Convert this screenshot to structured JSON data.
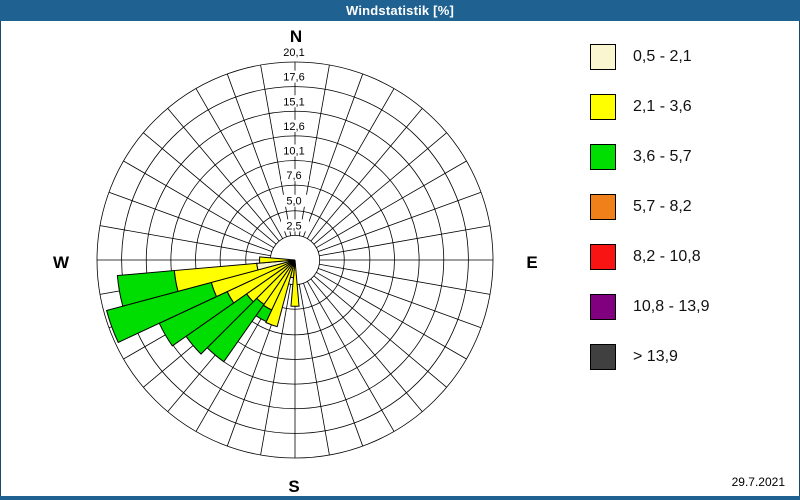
{
  "window": {
    "title": "Windstatistik [%]",
    "date": "29.7.2021"
  },
  "colors": {
    "titlebar": "#1f6191",
    "background": "#ffffff",
    "grid": "#000000",
    "classes": [
      "#faf7d0",
      "#ffff00",
      "#00dd00",
      "#f08019",
      "#f91414",
      "#800080",
      "#404040"
    ]
  },
  "legend": {
    "items": [
      {
        "label": "0,5 - 2,1",
        "color": "#faf7d0"
      },
      {
        "label": "2,1 - 3,6",
        "color": "#ffff00"
      },
      {
        "label": "3,6 - 5,7",
        "color": "#00dd00"
      },
      {
        "label": "5,7 - 8,2",
        "color": "#f08019"
      },
      {
        "label": "8,2 - 10,8",
        "color": "#f91414"
      },
      {
        "label": "10,8 - 13,9",
        "color": "#800080"
      },
      {
        "label": " > 13,9",
        "color": "#404040"
      }
    ]
  },
  "chart_data": {
    "type": "wind-rose",
    "title": "Windstatistik [%]",
    "value_unit": "%",
    "sectors": 36,
    "sector_width_deg": 10,
    "max_value": 20.1,
    "radial_ticks": {
      "values": [
        2.5,
        5.0,
        7.6,
        10.1,
        12.6,
        15.1,
        17.6,
        20.1
      ],
      "labels": [
        "2,5",
        "5,0",
        "7,6",
        "10,1",
        "12,6",
        "15,1",
        "17,6",
        "20,1"
      ]
    },
    "compass_labels": {
      "n": "N",
      "e": "E",
      "s": "S",
      "w": "W"
    },
    "speed_class_labels": [
      "0,5 - 2,1",
      "2,1 - 3,6",
      "3,6 - 5,7",
      "5,7 - 8,2",
      "8,2 - 10,8",
      "10,8 - 13,9",
      "> 13,9"
    ],
    "petals": [
      {
        "azimuth_deg": 180,
        "stack": [
          {
            "class": 0,
            "to": 0.4
          },
          {
            "class": 1,
            "to": 4.7
          }
        ]
      },
      {
        "azimuth_deg": 190,
        "stack": [
          {
            "class": 0,
            "to": 0.3
          },
          {
            "class": 1,
            "to": 1.8
          }
        ]
      },
      {
        "azimuth_deg": 200,
        "stack": [
          {
            "class": 0,
            "to": 0.4
          },
          {
            "class": 1,
            "to": 7.0
          }
        ]
      },
      {
        "azimuth_deg": 210,
        "stack": [
          {
            "class": 0,
            "to": 0.4
          },
          {
            "class": 1,
            "to": 5.6
          },
          {
            "class": 2,
            "to": 6.9
          }
        ]
      },
      {
        "azimuth_deg": 220,
        "stack": [
          {
            "class": 0,
            "to": 0.4
          },
          {
            "class": 1,
            "to": 5.5
          },
          {
            "class": 2,
            "to": 12.6
          }
        ]
      },
      {
        "azimuth_deg": 230,
        "stack": [
          {
            "class": 0,
            "to": 0.4
          },
          {
            "class": 1,
            "to": 6.0
          },
          {
            "class": 2,
            "to": 13.5
          }
        ]
      },
      {
        "azimuth_deg": 240,
        "stack": [
          {
            "class": 0,
            "to": 0.5
          },
          {
            "class": 1,
            "to": 7.6
          },
          {
            "class": 2,
            "to": 15.2
          }
        ]
      },
      {
        "azimuth_deg": 250,
        "stack": [
          {
            "class": 0,
            "to": 0.5
          },
          {
            "class": 1,
            "to": 8.8
          },
          {
            "class": 2,
            "to": 19.8
          }
        ]
      },
      {
        "azimuth_deg": 260,
        "stack": [
          {
            "class": 0,
            "to": 3.9
          },
          {
            "class": 1,
            "to": 12.3
          },
          {
            "class": 2,
            "to": 18.1
          }
        ]
      },
      {
        "azimuth_deg": 270,
        "stack": [
          {
            "class": 0,
            "to": 0.6
          },
          {
            "class": 1,
            "to": 3.6
          }
        ]
      }
    ]
  }
}
